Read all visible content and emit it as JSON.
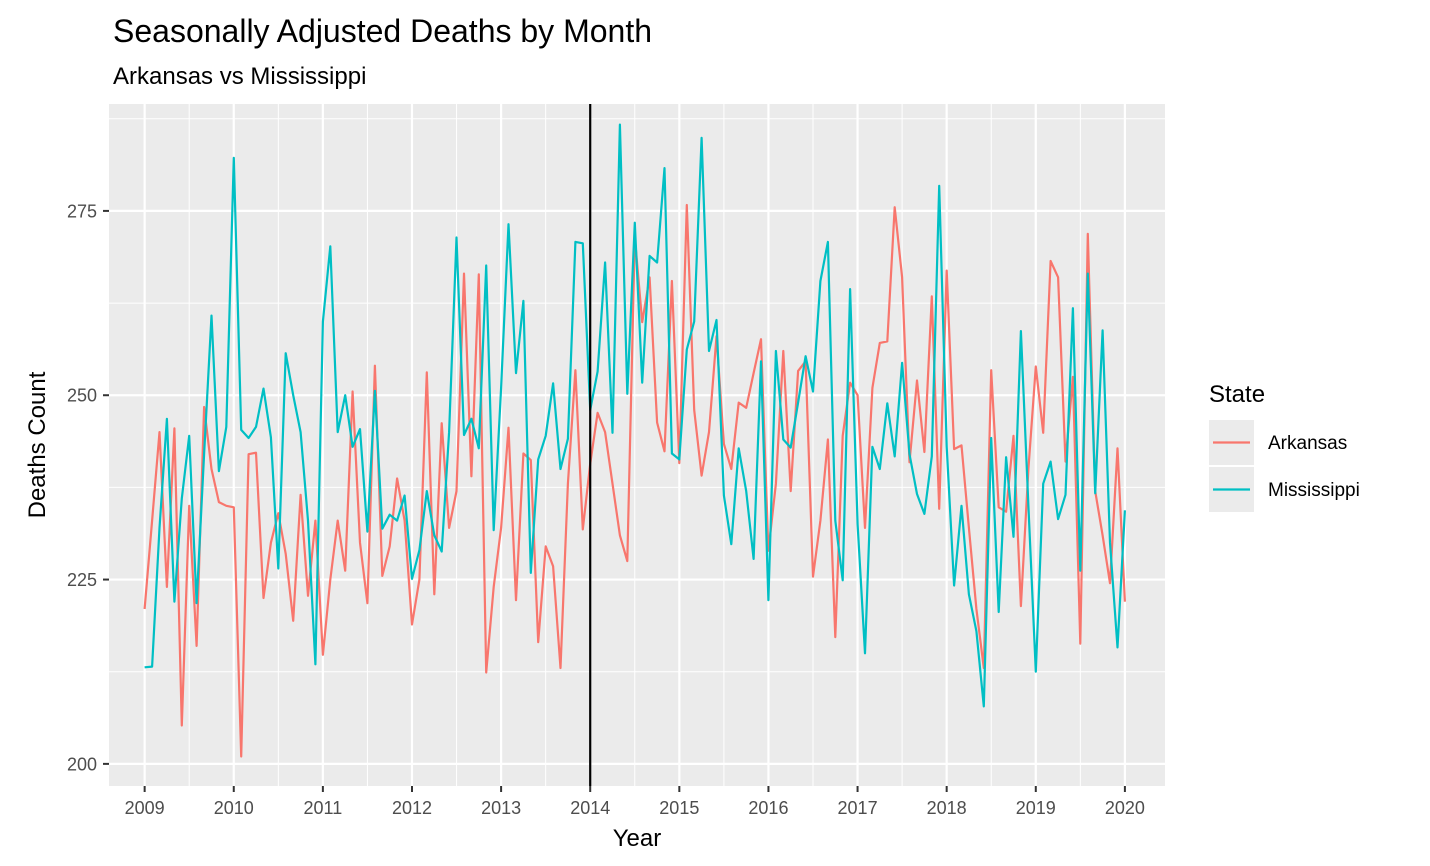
{
  "chart_data": {
    "type": "line",
    "title": "Seasonally Adjusted Deaths by Month",
    "subtitle": "Arkansas vs Mississippi",
    "xlabel": "Year",
    "ylabel": "Deaths Count",
    "x_ticks": [
      "2009",
      "2010",
      "2011",
      "2012",
      "2013",
      "2014",
      "2015",
      "2016",
      "2017",
      "2018",
      "2019",
      "2020"
    ],
    "y_ticks": [
      "200",
      "225",
      "250",
      "275"
    ],
    "xlim": [
      2008.6,
      2020.45
    ],
    "ylim": [
      197,
      289.5
    ],
    "grid": true,
    "vline_x": 2014,
    "legend": {
      "title": "State",
      "position": "right"
    },
    "start_year": 2009,
    "series": [
      {
        "name": "Arkansas",
        "color": "#F8766D",
        "values": [
          221,
          233,
          245,
          224,
          245.5,
          205.2,
          235,
          216,
          248.4,
          240,
          235.5,
          235,
          234.8,
          201,
          242,
          242.2,
          222.5,
          230,
          234,
          228.5,
          219.4,
          236.5,
          222.8,
          233,
          214.8,
          225,
          233,
          226.2,
          250.5,
          230,
          221.8,
          254,
          225.5,
          229.5,
          238.7,
          233,
          218.9,
          225,
          253.1,
          223,
          246.2,
          232,
          237,
          266.5,
          239,
          266.4,
          212.4,
          224,
          232,
          245.6,
          222.2,
          242.1,
          241.2,
          216.5,
          229.5,
          226.8,
          213,
          238,
          253.4,
          231.8,
          240.7,
          247.6,
          245,
          238,
          231,
          227.5,
          271.5,
          259.9,
          266,
          246.3,
          242.4,
          265.5,
          240.8,
          275.8,
          248,
          239.1,
          245,
          258,
          243.4,
          240,
          249,
          248.3,
          253,
          257.6,
          228.9,
          238,
          256,
          237,
          253.3,
          254.6,
          225.4,
          233,
          244,
          217.2,
          244.5,
          251.7,
          250,
          232,
          251,
          257.1,
          257.3,
          275.5,
          266,
          240.9,
          252,
          242.3,
          263.4,
          234.6,
          266.9,
          242.7,
          243.2,
          232,
          221,
          213,
          253.4,
          234.8,
          234.2,
          244.5,
          221.4,
          240,
          253.9,
          244.9,
          268.2,
          266,
          241,
          252.5,
          216.3,
          271.9,
          237,
          231,
          224.5,
          242.8,
          222
        ]
      },
      {
        "name": "Mississippi",
        "color": "#00BFC4",
        "values": [
          213.1,
          213.2,
          232,
          246.8,
          222,
          236,
          244.5,
          221.8,
          242,
          260.8,
          239.7,
          245.7,
          282.2,
          245.3,
          244.2,
          245.7,
          250.9,
          244.3,
          226.5,
          255.7,
          250,
          245,
          233,
          213.5,
          260,
          270.2,
          245,
          250,
          243,
          245.4,
          231.5,
          250.6,
          231.9,
          233.8,
          233,
          236.4,
          225.1,
          229,
          237,
          231,
          228.8,
          245,
          271.4,
          244.6,
          246.8,
          242.8,
          267.6,
          231.7,
          251,
          273.2,
          253,
          262.8,
          225.9,
          241.3,
          244.5,
          251.6,
          240,
          244.1,
          270.8,
          270.6,
          248,
          253.2,
          268,
          244.9,
          286.7,
          250.2,
          273.4,
          251.7,
          268.9,
          268,
          280.8,
          242.1,
          241.3,
          256.2,
          260,
          284.9,
          256,
          260.2,
          236.4,
          229.8,
          242.8,
          237,
          227.8,
          254.6,
          222.2,
          256,
          244,
          242.9,
          249,
          255.3,
          250.5,
          265.5,
          270.8,
          233,
          224.9,
          264.4,
          232.5,
          215,
          243,
          240,
          248.9,
          241.7,
          254.4,
          242,
          236.6,
          233.9,
          241.7,
          278.4,
          243,
          224.2,
          235,
          223,
          218,
          207.8,
          244.2,
          220.6,
          241.6,
          230.8,
          258.7,
          235,
          212.5,
          238,
          241,
          233.2,
          236.5,
          261.8,
          226.2,
          266.5,
          236.7,
          258.8,
          230,
          215.8,
          234.4
        ]
      }
    ]
  }
}
